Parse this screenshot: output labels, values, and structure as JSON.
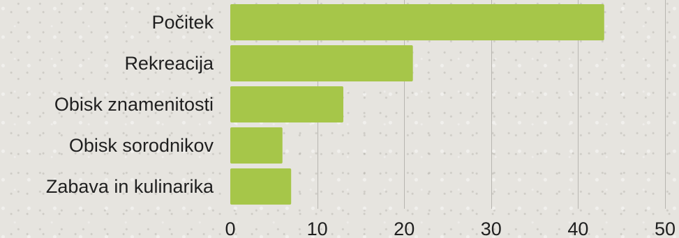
{
  "chart_data": {
    "type": "bar",
    "orientation": "horizontal",
    "categories": [
      "Počitek",
      "Rekreacija",
      "Obisk znamenitosti",
      "Obisk sorodnikov",
      "Zabava in kulinarika"
    ],
    "values": [
      43,
      21,
      13,
      6,
      7
    ],
    "xlim": [
      0,
      50
    ],
    "ticks": [
      "0",
      "10",
      "20",
      "30",
      "40",
      "50"
    ],
    "title": "",
    "xlabel": "",
    "ylabel": "",
    "grid": "vertical",
    "colors": {
      "bar": "#a6c649"
    }
  }
}
